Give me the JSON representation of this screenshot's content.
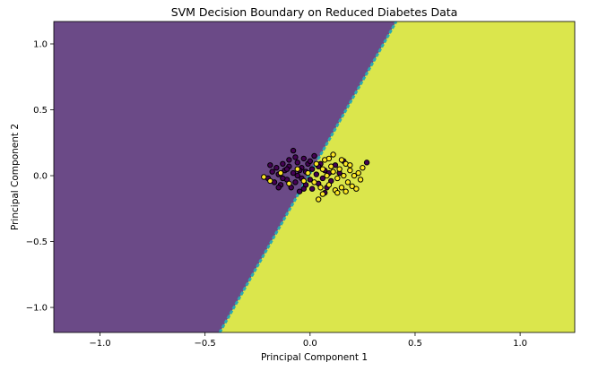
{
  "chart_data": {
    "type": "scatter",
    "title": "SVM Decision Boundary on Reduced Diabetes Data",
    "xlabel": "Principal Component 1",
    "ylabel": "Principal Component 2",
    "xlim": [
      -1.22,
      1.26
    ],
    "ylim": [
      -1.19,
      1.17
    ],
    "xticks": [
      -1.0,
      -0.5,
      0.0,
      0.5,
      1.0
    ],
    "xtick_labels": [
      "−1.0",
      "−0.5",
      "0.0",
      "0.5",
      "1.0"
    ],
    "yticks": [
      -1.0,
      -0.5,
      0.0,
      0.5,
      1.0
    ],
    "ytick_labels": [
      "−1.0",
      "−0.5",
      "0.0",
      "0.5",
      "1.0"
    ],
    "grid": false,
    "decision_boundary": {
      "line": [
        [
          -0.43,
          -1.19
        ],
        [
          0.41,
          1.17
        ]
      ],
      "region_left_class": 0,
      "region_right_class": 1,
      "boundary_color": "#2aa9b3"
    },
    "colors": {
      "class_0": "#6b4a87",
      "class_1": "#dbe64c",
      "class_0_point": "#440154",
      "class_1_point": "#fde725",
      "point_edge": "#000000"
    },
    "series": [
      {
        "class": 0,
        "points": [
          [
            -0.2,
            -0.02
          ],
          [
            -0.18,
            0.03
          ],
          [
            -0.17,
            -0.05
          ],
          [
            -0.16,
            0.06
          ],
          [
            -0.15,
            0.01
          ],
          [
            -0.14,
            -0.07
          ],
          [
            -0.13,
            0.09
          ],
          [
            -0.12,
            0.04
          ],
          [
            -0.11,
            -0.03
          ],
          [
            -0.1,
            0.12
          ],
          [
            -0.1,
            0.07
          ],
          [
            -0.09,
            -0.09
          ],
          [
            -0.08,
            0.02
          ],
          [
            -0.08,
            0.19
          ],
          [
            -0.07,
            -0.05
          ],
          [
            -0.06,
            0.1
          ],
          [
            -0.06,
            0.0
          ],
          [
            -0.05,
            -0.12
          ],
          [
            -0.04,
            0.06
          ],
          [
            -0.04,
            -0.02
          ],
          [
            -0.03,
            0.13
          ],
          [
            -0.02,
            0.03
          ],
          [
            -0.02,
            -0.07
          ],
          [
            -0.01,
            0.09
          ],
          [
            0.0,
            -0.03
          ],
          [
            0.01,
            0.05
          ],
          [
            0.01,
            -0.1
          ],
          [
            0.02,
            0.15
          ],
          [
            0.03,
            0.01
          ],
          [
            0.04,
            -0.06
          ],
          [
            0.05,
            0.09
          ],
          [
            0.06,
            -0.02
          ],
          [
            0.07,
            0.04
          ],
          [
            0.08,
            -0.09
          ],
          [
            0.09,
            0.02
          ],
          [
            0.1,
            -0.04
          ],
          [
            0.12,
            0.08
          ],
          [
            0.14,
            0.02
          ],
          [
            0.16,
            0.11
          ],
          [
            0.27,
            0.1
          ],
          [
            -0.19,
            0.08
          ],
          [
            -0.15,
            -0.09
          ],
          [
            -0.11,
            0.05
          ],
          [
            -0.07,
            0.14
          ],
          [
            -0.03,
            -0.1
          ],
          [
            0.0,
            0.11
          ],
          [
            0.04,
            0.07
          ],
          [
            0.07,
            -0.13
          ],
          [
            -0.13,
            -0.02
          ],
          [
            -0.05,
            0.04
          ]
        ]
      },
      {
        "class": 1,
        "points": [
          [
            -0.22,
            -0.01
          ],
          [
            -0.19,
            -0.04
          ],
          [
            -0.14,
            0.02
          ],
          [
            -0.1,
            -0.06
          ],
          [
            -0.06,
            0.05
          ],
          [
            -0.03,
            -0.04
          ],
          [
            -0.01,
            0.02
          ],
          [
            0.02,
            -0.05
          ],
          [
            0.03,
            0.09
          ],
          [
            0.04,
            -0.18
          ],
          [
            0.05,
            -0.09
          ],
          [
            0.06,
            0.05
          ],
          [
            0.07,
            0.12
          ],
          [
            0.08,
            0.0
          ],
          [
            0.09,
            -0.07
          ],
          [
            0.1,
            0.07
          ],
          [
            0.11,
            0.16
          ],
          [
            0.12,
            -0.11
          ],
          [
            0.13,
            -0.02
          ],
          [
            0.14,
            0.05
          ],
          [
            0.15,
            -0.09
          ],
          [
            0.16,
            0.0
          ],
          [
            0.17,
            0.09
          ],
          [
            0.18,
            -0.05
          ],
          [
            0.19,
            0.04
          ],
          [
            0.2,
            -0.08
          ],
          [
            0.21,
            0.0
          ],
          [
            0.22,
            -0.1
          ],
          [
            0.23,
            0.02
          ],
          [
            0.25,
            0.06
          ],
          [
            0.15,
            0.12
          ],
          [
            0.17,
            -0.12
          ],
          [
            0.19,
            0.08
          ],
          [
            0.13,
            -0.13
          ],
          [
            0.09,
            0.13
          ],
          [
            0.06,
            -0.14
          ],
          [
            0.24,
            -0.03
          ],
          [
            0.11,
            0.03
          ]
        ]
      }
    ]
  }
}
